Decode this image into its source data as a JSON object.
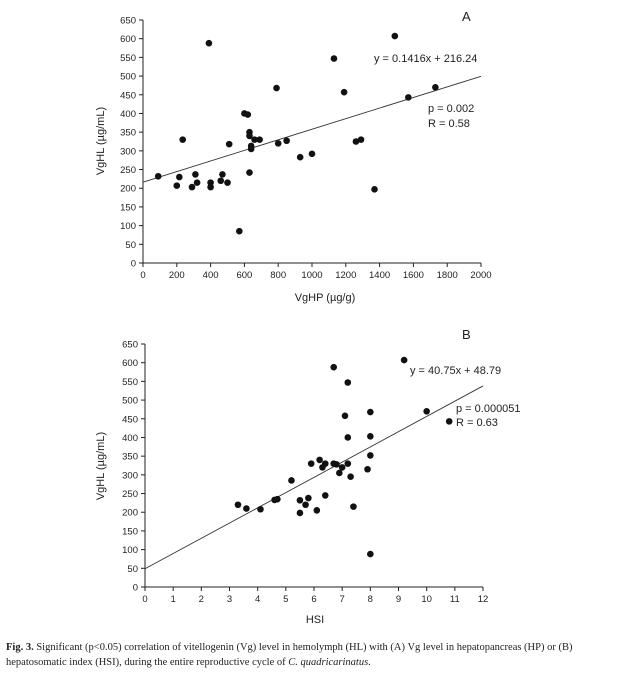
{
  "chart_data": [
    {
      "type": "scatter",
      "panel_letter": "A",
      "xlabel": "VgHP (µg/g)",
      "ylabel": "VgHL (µg/mL)",
      "xlim": [
        0,
        2000
      ],
      "ylim": [
        0,
        650
      ],
      "x_ticks": [
        0,
        200,
        400,
        600,
        800,
        1000,
        1200,
        1400,
        1600,
        1800,
        2000
      ],
      "y_ticks": [
        0,
        50,
        100,
        150,
        200,
        250,
        300,
        350,
        400,
        450,
        500,
        550,
        600,
        650
      ],
      "equation": "y = 0.1416x + 216.24",
      "p_text": "p = 0.002",
      "r_text": "R = 0.58",
      "trendline": {
        "slope": 0.1416,
        "intercept": 216.24,
        "x_range": [
          0,
          2000
        ]
      },
      "points": [
        [
          90,
          232
        ],
        [
          200,
          207
        ],
        [
          215,
          230
        ],
        [
          235,
          330
        ],
        [
          290,
          203
        ],
        [
          310,
          237
        ],
        [
          320,
          215
        ],
        [
          390,
          588
        ],
        [
          400,
          215
        ],
        [
          400,
          203
        ],
        [
          460,
          220
        ],
        [
          470,
          237
        ],
        [
          500,
          215
        ],
        [
          510,
          318
        ],
        [
          570,
          85
        ],
        [
          600,
          400
        ],
        [
          620,
          397
        ],
        [
          630,
          350
        ],
        [
          630,
          340
        ],
        [
          640,
          313
        ],
        [
          640,
          305
        ],
        [
          630,
          242
        ],
        [
          660,
          330
        ],
        [
          690,
          330
        ],
        [
          790,
          468
        ],
        [
          800,
          320
        ],
        [
          850,
          327
        ],
        [
          930,
          283
        ],
        [
          1000,
          292
        ],
        [
          1130,
          547
        ],
        [
          1190,
          457
        ],
        [
          1260,
          325
        ],
        [
          1290,
          330
        ],
        [
          1370,
          197
        ],
        [
          1490,
          607
        ],
        [
          1570,
          443
        ],
        [
          1730,
          470
        ]
      ]
    },
    {
      "type": "scatter",
      "panel_letter": "B",
      "xlabel": "HSI",
      "ylabel": "VgHL (µg/mL)",
      "xlim": [
        0,
        12
      ],
      "ylim": [
        0,
        650
      ],
      "x_ticks": [
        0,
        1,
        2,
        3,
        4,
        5,
        6,
        7,
        8,
        9,
        10,
        11,
        12
      ],
      "y_ticks": [
        0,
        50,
        100,
        150,
        200,
        250,
        300,
        350,
        400,
        450,
        500,
        550,
        600,
        650
      ],
      "equation": "y = 40.75x + 48.79",
      "p_text": "p = 0.000051",
      "r_text": "R = 0.63",
      "trendline": {
        "slope": 40.75,
        "intercept": 48.79,
        "x_range": [
          0,
          12
        ]
      },
      "points": [
        [
          3.3,
          220
        ],
        [
          3.6,
          210
        ],
        [
          4.1,
          208
        ],
        [
          4.6,
          233
        ],
        [
          4.7,
          235
        ],
        [
          5.2,
          285
        ],
        [
          5.5,
          198
        ],
        [
          5.5,
          232
        ],
        [
          5.7,
          220
        ],
        [
          5.8,
          238
        ],
        [
          5.9,
          330
        ],
        [
          6.1,
          205
        ],
        [
          6.2,
          340
        ],
        [
          6.3,
          320
        ],
        [
          6.4,
          245
        ],
        [
          6.4,
          330
        ],
        [
          6.7,
          330
        ],
        [
          6.7,
          588
        ],
        [
          6.8,
          328
        ],
        [
          6.9,
          305
        ],
        [
          7.0,
          320
        ],
        [
          7.1,
          458
        ],
        [
          7.2,
          547
        ],
        [
          7.2,
          400
        ],
        [
          7.2,
          330
        ],
        [
          7.3,
          295
        ],
        [
          7.4,
          215
        ],
        [
          7.9,
          315
        ],
        [
          8.0,
          403
        ],
        [
          8.0,
          352
        ],
        [
          8.0,
          468
        ],
        [
          8.0,
          88
        ],
        [
          9.2,
          607
        ],
        [
          10.0,
          470
        ],
        [
          10.8,
          443
        ]
      ]
    }
  ],
  "caption": {
    "lead": "Fig. 3.",
    "body": " Significant (p<0.05) correlation of vitellogenin (Vg) level in hemolymph (HL) with (A) Vg level in hepatopancreas (HP) or (B) hepatosomatic index (HSI), during the entire reproductive cycle of ",
    "species": "C. quadricarinatus",
    "end": "."
  }
}
